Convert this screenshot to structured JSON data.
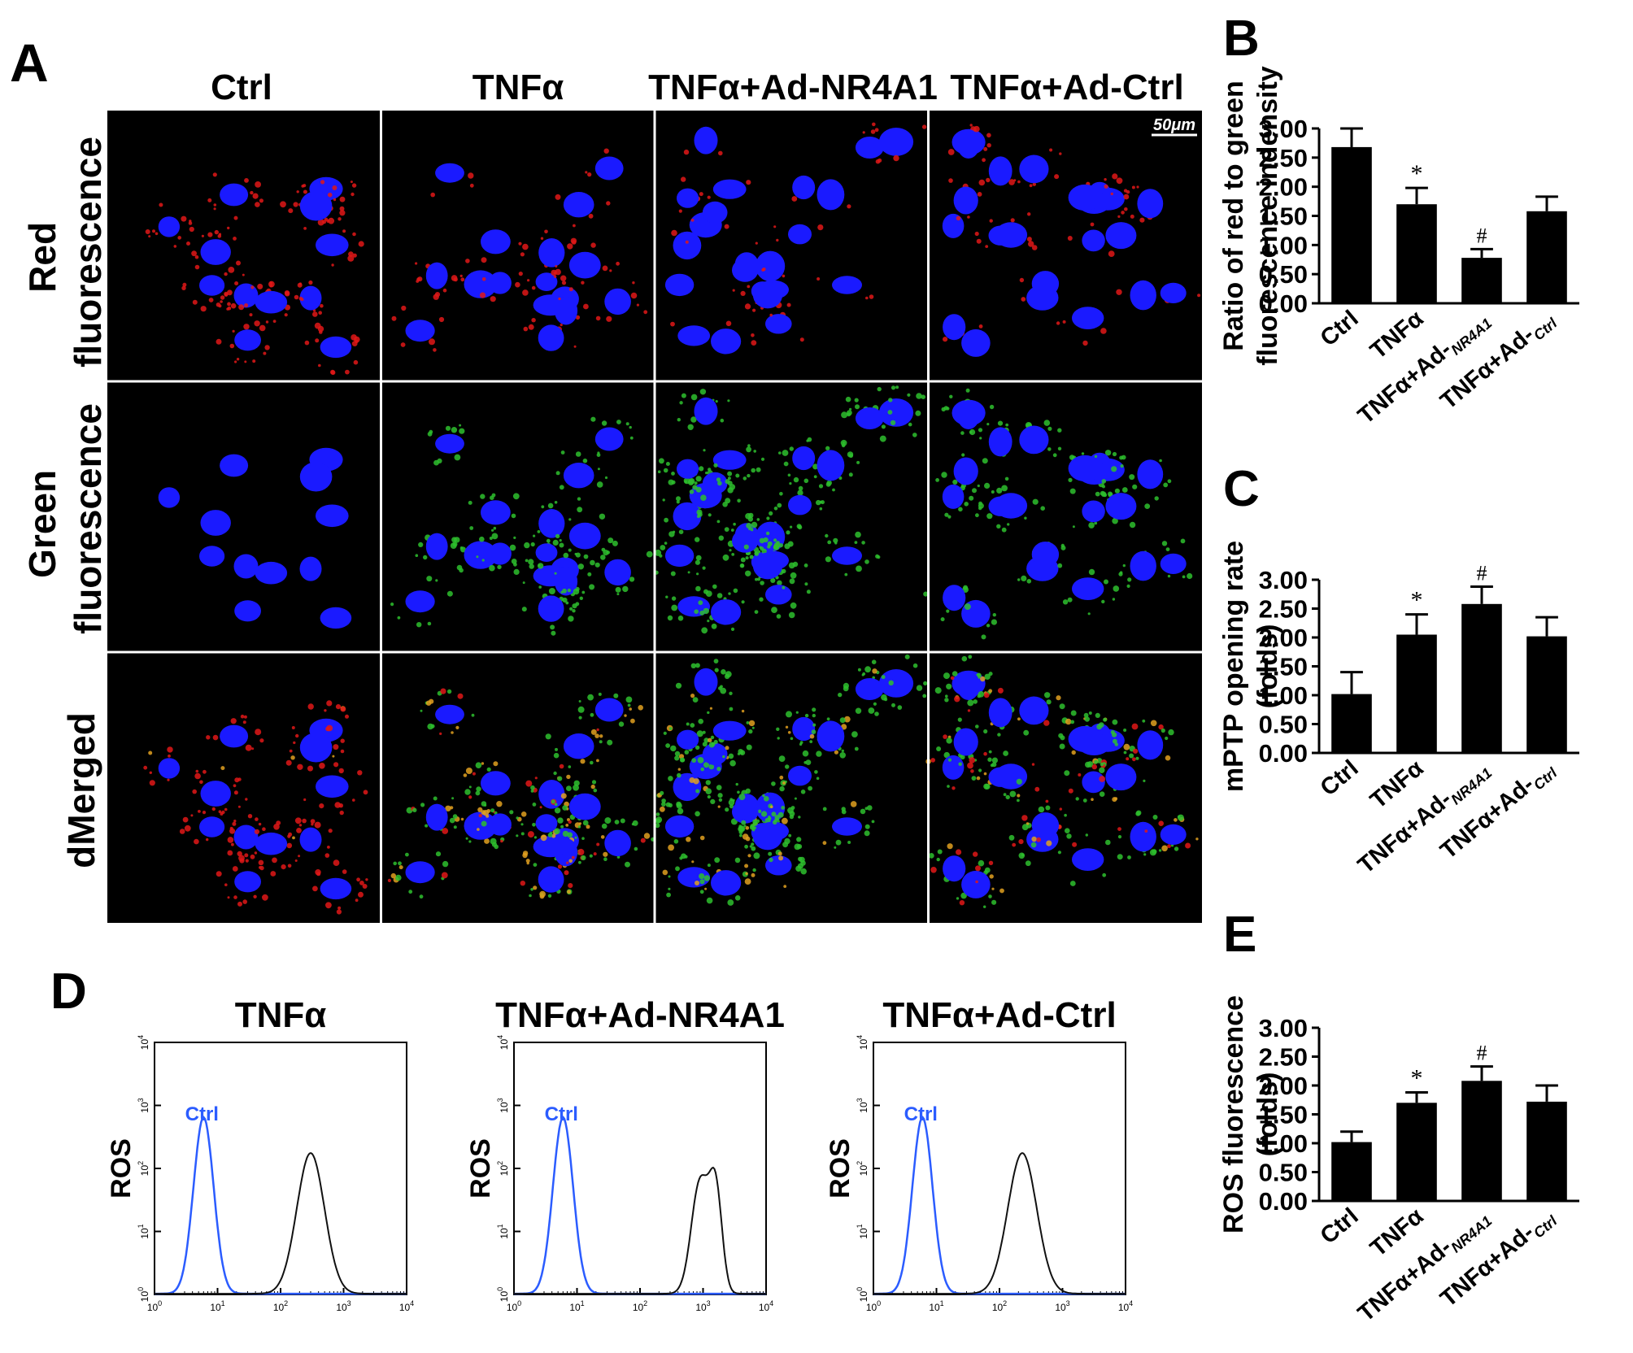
{
  "panel_letters": [
    "A",
    "B",
    "C",
    "D",
    "E"
  ],
  "micrograph_grid": {
    "column_titles": [
      "Ctrl",
      "TNFα",
      "TNFα+Ad-NR4A1",
      "TNFα+Ad-Ctrl"
    ],
    "row_labels": [
      [
        "Red",
        "fluorescence"
      ],
      [
        "Green",
        "fluorescence"
      ],
      [
        "dMerged"
      ]
    ],
    "scale_bar_label": "50μm",
    "colors": {
      "background": "#000000",
      "nucleus": "#1a1aff",
      "mito_red": "#e01818",
      "mito_green": "#2ec02e",
      "merged": "#e0a020",
      "divider": "#ffffff"
    },
    "red_density": [
      0.9,
      0.4,
      0.15,
      0.25
    ],
    "green_density": [
      0.0,
      0.6,
      0.9,
      0.45
    ]
  },
  "bar_groups_display": [
    "Ctrl",
    "TNFα",
    "TNFα+Ad-",
    "NR4A1",
    "TNFα+Ad-",
    "Ctrl"
  ],
  "chart_data": [
    {
      "panel": "B",
      "type": "bar",
      "categories": [
        "Ctrl",
        "TNFα",
        "TNFα+Ad-NR4A1",
        "TNFα+Ad-Ctrl"
      ],
      "values": [
        2.68,
        1.7,
        0.78,
        1.58
      ],
      "errors": [
        0.32,
        0.28,
        0.15,
        0.25
      ],
      "annotations": [
        "",
        "*",
        "#",
        ""
      ],
      "ylabel": [
        "Ratio of red to green",
        "fluorescence indensity"
      ],
      "ylim": [
        0,
        3.0
      ],
      "yticks": [
        "0.00",
        "0.50",
        "1.00",
        "1.50",
        "2.00",
        "2.50",
        "3.00"
      ],
      "bar_color": "#000000"
    },
    {
      "panel": "C",
      "type": "bar",
      "categories": [
        "Ctrl",
        "TNFα",
        "TNFα+Ad-NR4A1",
        "TNFα+Ad-Ctrl"
      ],
      "values": [
        1.02,
        2.05,
        2.58,
        2.02
      ],
      "errors": [
        0.38,
        0.35,
        0.3,
        0.33
      ],
      "annotations": [
        "",
        "*",
        "#",
        ""
      ],
      "ylabel": [
        "mPTP opening rate",
        "(folds)"
      ],
      "ylim": [
        0,
        3.0
      ],
      "yticks": [
        "0.00",
        "0.50",
        "1.00",
        "1.50",
        "2.00",
        "2.50",
        "3.00"
      ],
      "bar_color": "#000000"
    },
    {
      "panel": "E",
      "type": "bar",
      "categories": [
        "Ctrl",
        "TNFα",
        "TNFα+Ad-NR4A1",
        "TNFα+Ad-Ctrl"
      ],
      "values": [
        1.02,
        1.7,
        2.08,
        1.72
      ],
      "errors": [
        0.18,
        0.18,
        0.25,
        0.28
      ],
      "annotations": [
        "",
        "*",
        "#",
        ""
      ],
      "ylabel": [
        "ROS fluorescence",
        "(folds)"
      ],
      "ylim": [
        0,
        3.0
      ],
      "yticks": [
        "0.00",
        "0.50",
        "1.00",
        "1.50",
        "2.00",
        "2.50",
        "3.00"
      ],
      "bar_color": "#000000"
    },
    {
      "panel": "D",
      "type": "line",
      "subtype": "flow-histogram",
      "plots": [
        {
          "title": "TNFα",
          "control_label": "Ctrl",
          "control_peak": 6,
          "control_width": 0.16,
          "sample_peaks": [
            {
              "center": 300,
              "width": 0.22,
              "height": 0.9
            }
          ]
        },
        {
          "title": "TNFα+Ad-NR4A1",
          "control_label": "Ctrl",
          "control_peak": 6,
          "control_width": 0.16,
          "sample_peaks": [
            {
              "center": 900,
              "width": 0.14,
              "height": 0.72
            },
            {
              "center": 1600,
              "width": 0.1,
              "height": 0.62
            }
          ]
        },
        {
          "title": "TNFα+Ad-Ctrl",
          "control_label": "Ctrl",
          "control_peak": 6,
          "control_width": 0.16,
          "sample_peaks": [
            {
              "center": 230,
              "width": 0.23,
              "height": 0.9
            }
          ]
        }
      ],
      "ylabel": "ROS",
      "axis_ticks_x": [
        "10",
        "10",
        "10",
        "10",
        "10"
      ],
      "axis_tick_exponents": [
        "0",
        "1",
        "2",
        "3",
        "4"
      ],
      "xscale": "log",
      "yscale": "log",
      "xlim": [
        1,
        10000
      ],
      "ylim": [
        1,
        10000
      ],
      "colors": {
        "control": "#2b5cff",
        "sample": "#111111"
      }
    }
  ]
}
